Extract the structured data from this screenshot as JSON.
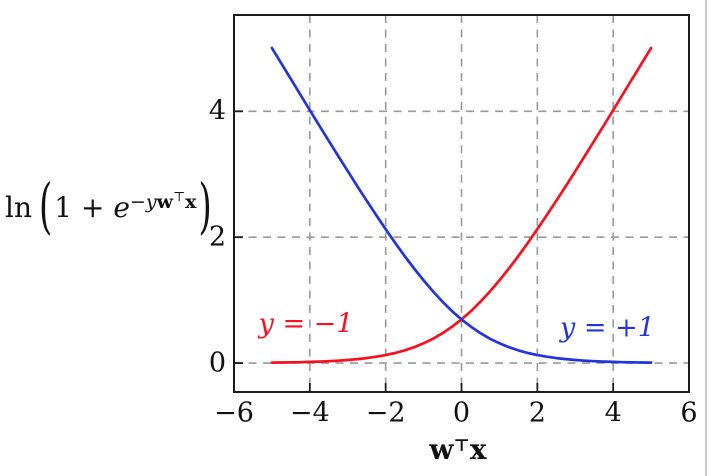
{
  "ylabel_formula": {
    "ln": "ln",
    "open_paren": "(",
    "one_plus": "1 + ",
    "e": "e",
    "exp_minus_y": "−y",
    "exp_w": "w",
    "exp_top": "⊤",
    "exp_x": "x",
    "close_paren": ")"
  },
  "xlabel": {
    "w": "w",
    "top": "⊤",
    "x": "x"
  },
  "chart_data": {
    "type": "line",
    "title": "",
    "xlabel": "w^T x",
    "ylabel": "ln(1 + e^(-y w^T x))",
    "xlim": [
      -6,
      6
    ],
    "ylim": [
      -0.46,
      5.53
    ],
    "xticks": {
      "values": [
        -6,
        -4,
        -2,
        0,
        2,
        4,
        6
      ],
      "labels": [
        "−6",
        "−4",
        "−2",
        "0",
        "2",
        "4",
        "6"
      ]
    },
    "yticks": {
      "values": [
        0,
        2,
        4
      ],
      "labels": [
        "0",
        "2",
        "4"
      ]
    },
    "grid": {
      "x_values": [
        -4,
        -2,
        0,
        2,
        4
      ],
      "y_values": [
        0,
        2,
        4
      ],
      "color": "#9a9a9a",
      "dash": "8 6.5",
      "on": true
    },
    "axis_color": "#1b1b1b",
    "legend_position": "in-plot text annotations",
    "x": [
      -5,
      -4.75,
      -4.5,
      -4.25,
      -4,
      -3.75,
      -3.5,
      -3.25,
      -3,
      -2.75,
      -2.5,
      -2.25,
      -2,
      -1.75,
      -1.5,
      -1.25,
      -1,
      -0.75,
      -0.5,
      -0.25,
      0,
      0.25,
      0.5,
      0.75,
      1,
      1.25,
      1.5,
      1.75,
      2,
      2.25,
      2.5,
      2.75,
      3,
      3.25,
      3.5,
      3.75,
      4,
      4.25,
      4.5,
      4.75,
      5
    ],
    "series": [
      {
        "name": "y = −1",
        "color": "#f8101f",
        "values": [
          0.0067,
          0.0086,
          0.011,
          0.0142,
          0.0181,
          0.0232,
          0.0297,
          0.038,
          0.0486,
          0.062,
          0.0789,
          0.1003,
          0.1269,
          0.1602,
          0.2014,
          0.2519,
          0.3133,
          0.3869,
          0.4741,
          0.576,
          0.6931,
          0.826,
          0.9741,
          1.1369,
          1.3133,
          1.5019,
          1.7014,
          1.9102,
          2.1269,
          2.3503,
          2.5789,
          2.812,
          3.0486,
          3.288,
          3.5297,
          3.7732,
          4.0181,
          4.2642,
          4.511,
          4.7586,
          5.0067
        ]
      },
      {
        "name": "y = +1",
        "color": "#2134e0",
        "values": [
          5.0067,
          4.7586,
          4.511,
          4.2642,
          4.0181,
          3.7732,
          3.5297,
          3.288,
          3.0486,
          2.812,
          2.5789,
          2.3503,
          2.1269,
          1.9102,
          1.7014,
          1.5019,
          1.3133,
          1.1369,
          0.9741,
          0.826,
          0.6931,
          0.576,
          0.4741,
          0.3869,
          0.3133,
          0.2519,
          0.2014,
          0.1602,
          0.1269,
          0.1003,
          0.0789,
          0.062,
          0.0486,
          0.038,
          0.0297,
          0.0232,
          0.0181,
          0.0142,
          0.011,
          0.0086,
          0.0067
        ]
      }
    ],
    "annotations": [
      {
        "text": "y = −1",
        "x": -4.1,
        "y": 0.62,
        "color": "#f8101f"
      },
      {
        "text": "y = +1",
        "x": 3.85,
        "y": 0.56,
        "color": "#2134e0"
      }
    ]
  }
}
